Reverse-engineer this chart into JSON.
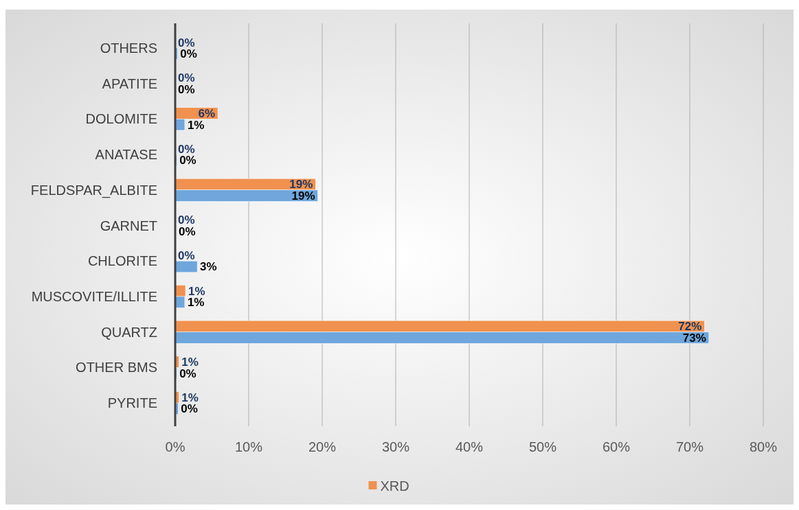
{
  "chart_data": {
    "type": "bar",
    "orientation": "horizontal",
    "categories": [
      "OTHERS",
      "APATITE",
      "DOLOMITE",
      "ANATASE",
      "FELDSPAR_ALBITE",
      "GARNET",
      "CHLORITE",
      "MUSCOVITE/ILLITE",
      "QUARTZ",
      "OTHER BMS",
      "PYRITE"
    ],
    "series": [
      {
        "name": "XRD",
        "color": "#f0914f",
        "values": [
          0,
          0,
          5.8,
          0,
          19.1,
          0,
          0,
          1.4,
          72.0,
          0.5,
          0.5
        ],
        "value_labels": [
          "0%",
          "0%",
          "6%",
          "0%",
          "19%",
          "0%",
          "0%",
          "1%",
          "72%",
          "1%",
          "1%"
        ]
      },
      {
        "color": "#6fa6dc",
        "values": [
          0.3,
          0,
          1.3,
          0.2,
          19.4,
          0.1,
          3.0,
          1.3,
          72.6,
          0.2,
          0.4
        ],
        "value_labels": [
          "0%",
          "0%",
          "1%",
          "0%",
          "19%",
          "0%",
          "3%",
          "1%",
          "73%",
          "0%",
          "0%"
        ]
      }
    ],
    "xlim": [
      0,
      80
    ],
    "xticks": [
      {
        "value": 0,
        "label": "0%"
      },
      {
        "value": 10,
        "label": "10%"
      },
      {
        "value": 20,
        "label": "20%"
      },
      {
        "value": 30,
        "label": "30%"
      },
      {
        "value": 40,
        "label": "40%"
      },
      {
        "value": 50,
        "label": "50%"
      },
      {
        "value": 60,
        "label": "60%"
      },
      {
        "value": 70,
        "label": "70%"
      },
      {
        "value": 80,
        "label": "80%"
      }
    ],
    "grid": "x",
    "legend": "bottom"
  }
}
